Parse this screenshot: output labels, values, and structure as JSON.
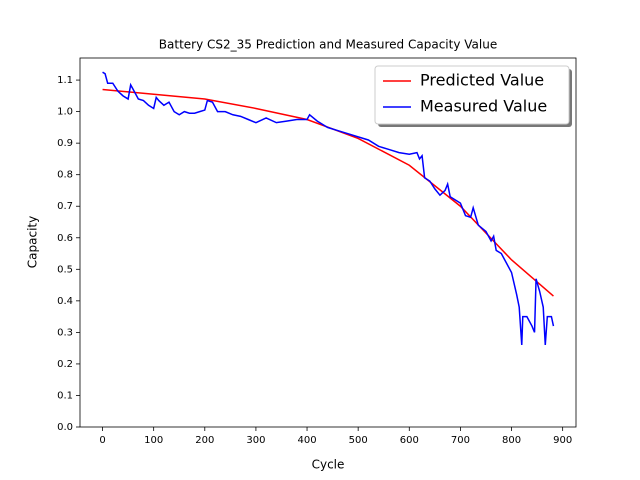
{
  "chart_data": {
    "type": "line",
    "title": "Battery CS2_35 Prediction and Measured Capacity Value",
    "x_label": "Cycle",
    "y_label": "Capacity",
    "xlim": [
      -44.1,
      926.1
    ],
    "ylim": [
      0,
      1.17
    ],
    "xticks": [
      0,
      100,
      200,
      300,
      400,
      500,
      600,
      700,
      800,
      900
    ],
    "yticks": [
      {
        "value": 0,
        "label": "0.0"
      },
      0.1,
      0.2,
      0.3,
      0.4,
      0.5,
      0.6,
      0.7,
      0.8,
      0.9,
      {
        "value": 1,
        "label": "1.0"
      },
      1.1
    ],
    "legend": "upper right",
    "series": [
      {
        "name": "Predicted Value",
        "color": "#ff0000",
        "x": [
          0,
          100,
          200,
          300,
          400,
          500,
          600,
          700,
          800,
          882
        ],
        "values": [
          1.07,
          1.055,
          1.04,
          1.01,
          0.975,
          0.915,
          0.83,
          0.7,
          0.53,
          0.415
        ]
      },
      {
        "name": "Measured Value",
        "color": "#0000ff",
        "x": [
          0,
          5,
          10,
          20,
          30,
          40,
          50,
          55,
          60,
          70,
          80,
          90,
          100,
          105,
          110,
          120,
          130,
          140,
          150,
          160,
          170,
          180,
          190,
          200,
          205,
          215,
          225,
          240,
          255,
          270,
          285,
          300,
          320,
          340,
          360,
          380,
          400,
          405,
          420,
          440,
          460,
          480,
          500,
          520,
          540,
          560,
          580,
          600,
          615,
          620,
          625,
          630,
          640,
          650,
          660,
          670,
          675,
          680,
          700,
          710,
          720,
          725,
          735,
          750,
          760,
          765,
          770,
          780,
          790,
          800,
          810,
          815,
          820,
          822,
          830,
          840,
          845,
          848,
          855,
          862,
          866,
          870,
          878,
          882
        ],
        "values": [
          1.125,
          1.12,
          1.09,
          1.09,
          1.065,
          1.05,
          1.04,
          1.085,
          1.07,
          1.04,
          1.035,
          1.02,
          1.01,
          1.045,
          1.035,
          1.02,
          1.03,
          1.0,
          0.99,
          1.0,
          0.995,
          0.995,
          1.0,
          1.005,
          1.035,
          1.03,
          1.0,
          1.0,
          0.99,
          0.985,
          0.975,
          0.965,
          0.98,
          0.965,
          0.97,
          0.975,
          0.975,
          0.99,
          0.97,
          0.95,
          0.94,
          0.93,
          0.92,
          0.91,
          0.89,
          0.88,
          0.87,
          0.865,
          0.87,
          0.85,
          0.86,
          0.79,
          0.78,
          0.755,
          0.735,
          0.75,
          0.77,
          0.73,
          0.71,
          0.67,
          0.665,
          0.695,
          0.64,
          0.62,
          0.59,
          0.605,
          0.56,
          0.55,
          0.52,
          0.49,
          0.42,
          0.38,
          0.26,
          0.35,
          0.35,
          0.32,
          0.3,
          0.47,
          0.43,
          0.38,
          0.26,
          0.35,
          0.35,
          0.32
        ]
      }
    ]
  }
}
